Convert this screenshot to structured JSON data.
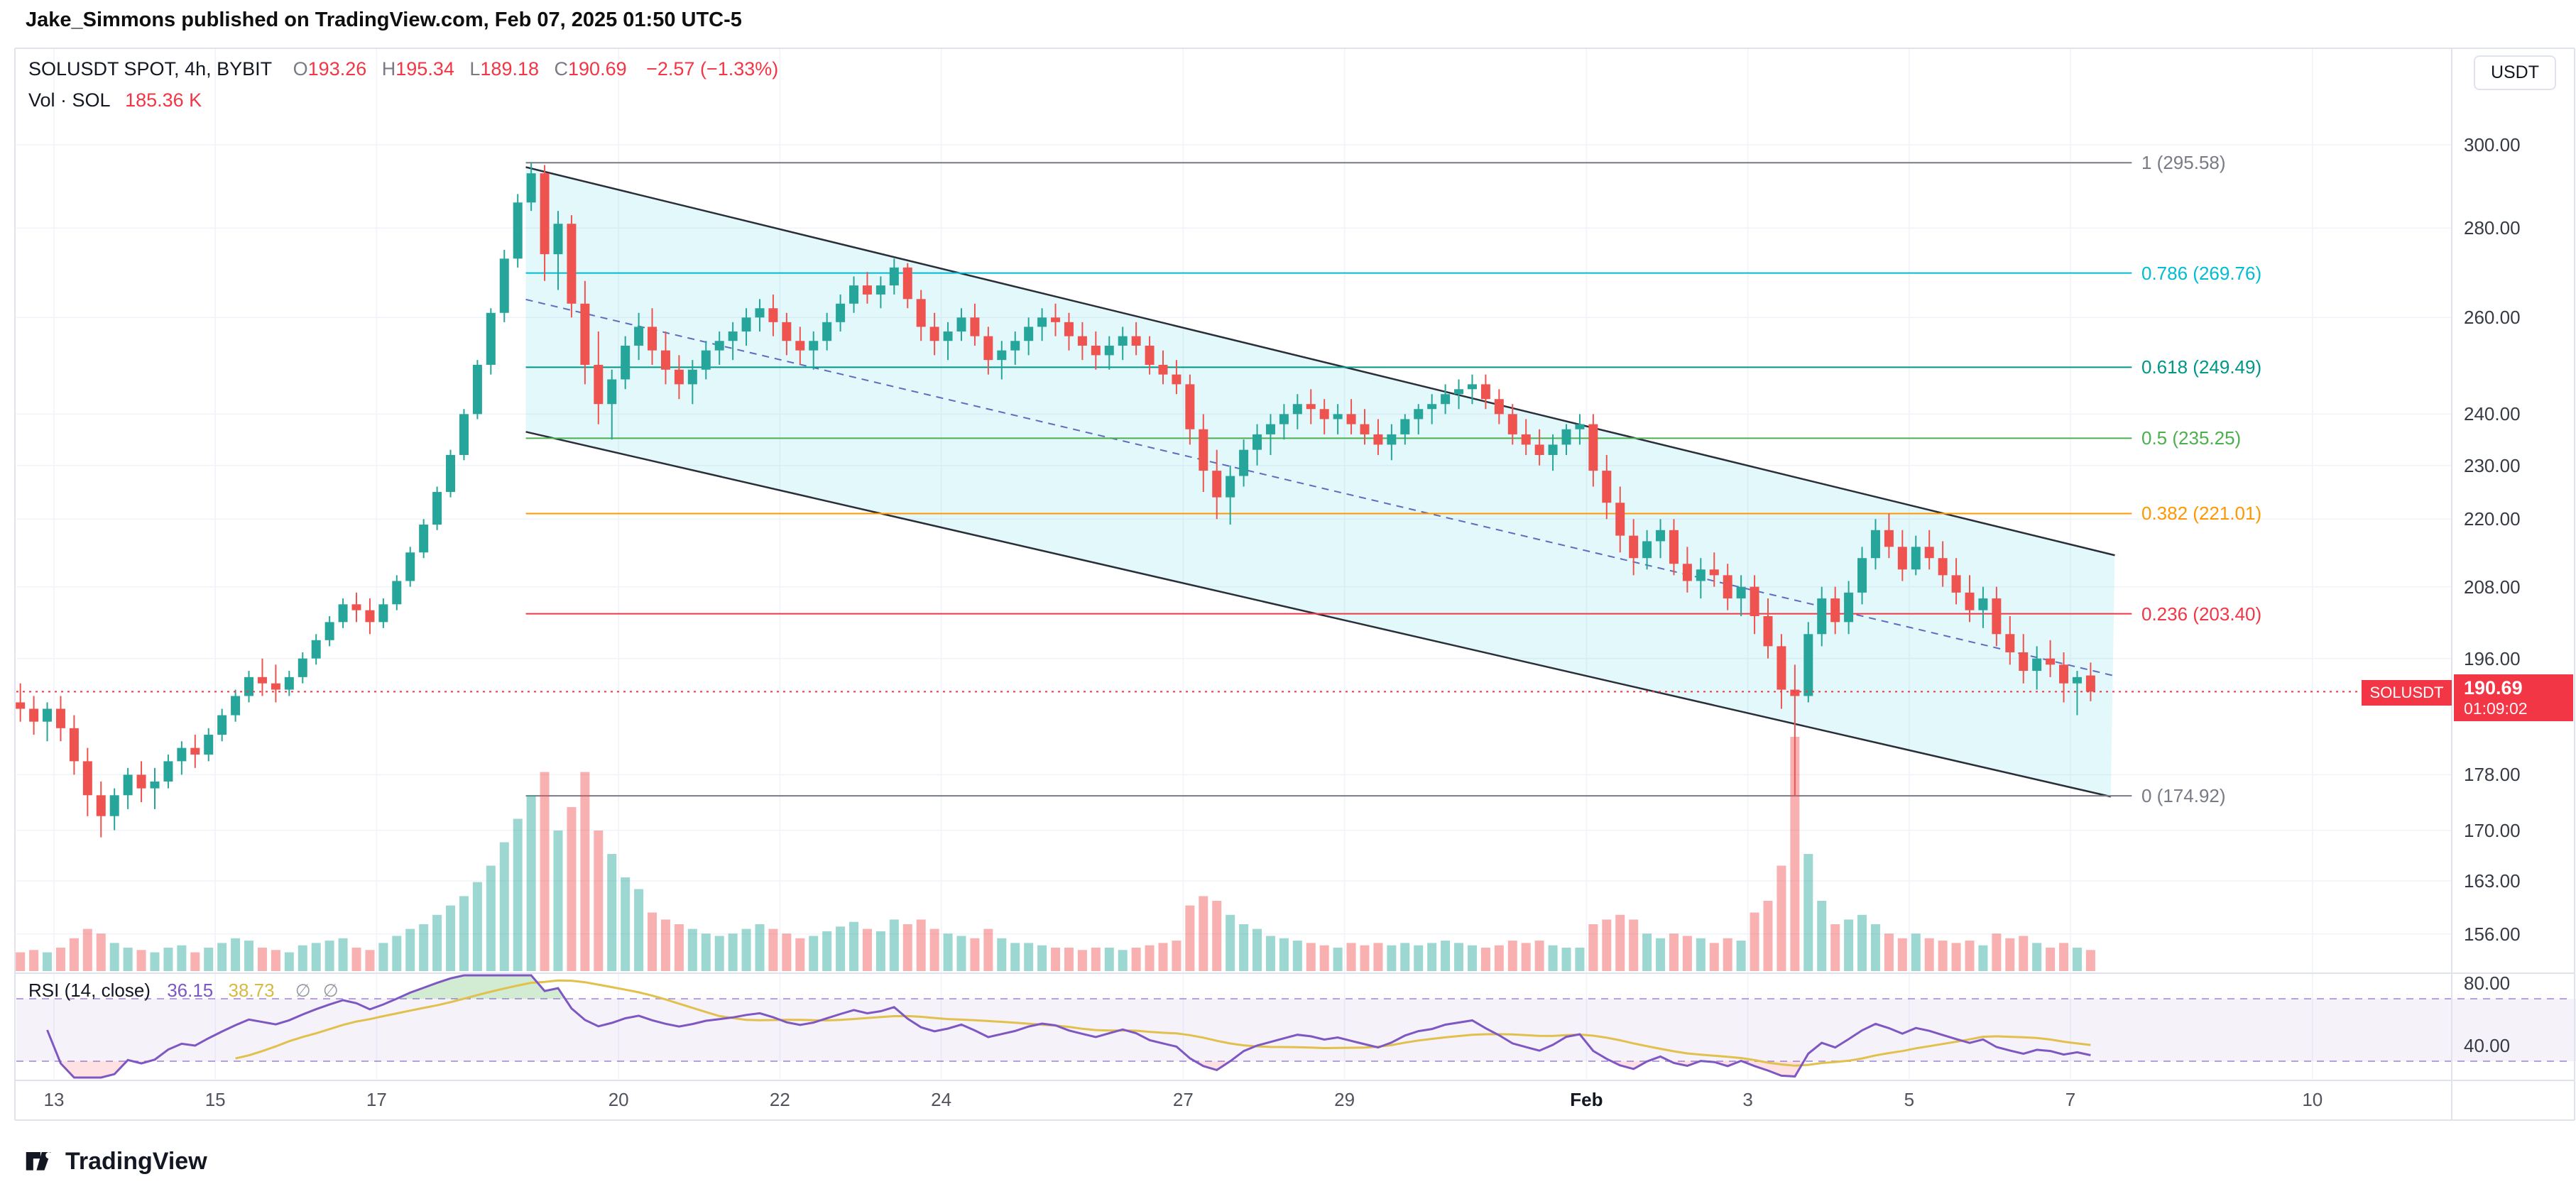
{
  "header": {
    "published": "Jake_Simmons published on TradingView.com, Feb 07, 2025 01:50 UTC-5"
  },
  "legend": {
    "symbol": "SOLUSDT SPOT, 4h, BYBIT",
    "o_label": "O",
    "o_value": "193.26",
    "h_label": "H",
    "h_value": "195.34",
    "l_label": "L",
    "l_value": "189.18",
    "c_label": "C",
    "c_value": "190.69",
    "change": "−2.57 (−1.33%)",
    "vol_label": "Vol · SOL",
    "vol_value": "185.36 K"
  },
  "rsi_legend": {
    "label": "RSI (14, close)",
    "value": "36.15",
    "ma_value": "38.73",
    "slot1": "∅",
    "slot2": "∅"
  },
  "price_axis": {
    "currency": "USDT",
    "ticks": [
      {
        "label": "300.00",
        "value": 300
      },
      {
        "label": "280.00",
        "value": 280
      },
      {
        "label": "260.00",
        "value": 260
      },
      {
        "label": "240.00",
        "value": 240
      },
      {
        "label": "230.00",
        "value": 230
      },
      {
        "label": "220.00",
        "value": 220
      },
      {
        "label": "208.00",
        "value": 208
      },
      {
        "label": "196.00",
        "value": 196
      },
      {
        "label": "178.00",
        "value": 178
      },
      {
        "label": "170.00",
        "value": 170
      },
      {
        "label": "163.00",
        "value": 163
      },
      {
        "label": "156.00",
        "value": 156
      }
    ]
  },
  "time_axis": {
    "ticks": [
      {
        "label": "13",
        "day": 13,
        "major": false
      },
      {
        "label": "15",
        "day": 15,
        "major": false
      },
      {
        "label": "17",
        "day": 17,
        "major": false
      },
      {
        "label": "20",
        "day": 20,
        "major": false
      },
      {
        "label": "22",
        "day": 22,
        "major": false
      },
      {
        "label": "24",
        "day": 24,
        "major": false
      },
      {
        "label": "27",
        "day": 27,
        "major": false
      },
      {
        "label": "29",
        "day": 29,
        "major": false
      },
      {
        "label": "Feb",
        "day": 32,
        "major": true
      },
      {
        "label": "3",
        "day": 34,
        "major": false
      },
      {
        "label": "5",
        "day": 36,
        "major": false
      },
      {
        "label": "7",
        "day": 38,
        "major": false
      },
      {
        "label": "10",
        "day": 41,
        "major": false
      }
    ]
  },
  "price_line": {
    "symbol": "SOLUSDT",
    "price": "190.69",
    "countdown": "01:09:02",
    "value": 190.69
  },
  "footer": {
    "brand": "TradingView"
  },
  "chart_data": {
    "type": "candlestick",
    "title": "SOLUSDT SPOT 4h BYBIT",
    "symbol": "SOLUSDT",
    "exchange": "BYBIT",
    "interval": "4h",
    "price_scale": "log",
    "ohlc_current": {
      "open": 193.26,
      "high": 195.34,
      "low": 189.18,
      "close": 190.69,
      "change": -2.57,
      "change_pct": -1.33
    },
    "volume_current": "185.36 K",
    "last_price": 190.69,
    "x_start_day": 12.5,
    "candles_per_day": 6,
    "candles": [
      [
        189,
        192,
        186,
        188,
        8
      ],
      [
        188,
        190,
        184,
        186,
        9
      ],
      [
        186,
        189,
        183,
        188,
        8
      ],
      [
        188,
        190,
        183,
        185,
        10
      ],
      [
        185,
        187,
        178,
        180,
        14
      ],
      [
        180,
        182,
        172,
        175,
        18
      ],
      [
        175,
        177,
        169,
        172,
        16
      ],
      [
        172,
        176,
        170,
        175,
        12
      ],
      [
        175,
        179,
        173,
        178,
        10
      ],
      [
        178,
        180,
        174,
        176,
        9
      ],
      [
        176,
        179,
        173,
        177,
        8
      ],
      [
        177,
        181,
        176,
        180,
        10
      ],
      [
        180,
        183,
        178,
        182,
        11
      ],
      [
        182,
        184,
        179,
        181,
        8
      ],
      [
        181,
        185,
        180,
        184,
        10
      ],
      [
        184,
        188,
        183,
        187,
        12
      ],
      [
        187,
        191,
        186,
        190,
        14
      ],
      [
        190,
        194,
        189,
        193,
        13
      ],
      [
        193,
        196,
        190,
        192,
        10
      ],
      [
        192,
        195,
        189,
        191,
        9
      ],
      [
        191,
        194,
        190,
        193,
        8
      ],
      [
        193,
        197,
        192,
        196,
        11
      ],
      [
        196,
        200,
        195,
        199,
        12
      ],
      [
        199,
        203,
        198,
        202,
        13
      ],
      [
        202,
        206,
        201,
        205,
        14
      ],
      [
        205,
        207,
        202,
        204,
        10
      ],
      [
        204,
        206,
        200,
        202,
        9
      ],
      [
        202,
        206,
        201,
        205,
        12
      ],
      [
        205,
        210,
        204,
        209,
        15
      ],
      [
        209,
        215,
        208,
        214,
        18
      ],
      [
        214,
        220,
        213,
        219,
        20
      ],
      [
        219,
        226,
        218,
        225,
        24
      ],
      [
        225,
        233,
        224,
        232,
        28
      ],
      [
        232,
        241,
        231,
        240,
        32
      ],
      [
        240,
        251,
        239,
        250,
        38
      ],
      [
        250,
        262,
        248,
        261,
        45
      ],
      [
        261,
        275,
        259,
        273,
        55
      ],
      [
        273,
        288,
        271,
        286,
        65
      ],
      [
        286,
        295.58,
        284,
        293,
        75
      ],
      [
        293,
        295,
        268,
        274,
        85
      ],
      [
        274,
        284,
        266,
        281,
        60
      ],
      [
        281,
        283,
        260,
        263,
        70
      ],
      [
        263,
        268,
        246,
        250,
        85
      ],
      [
        250,
        257,
        238,
        242,
        60
      ],
      [
        242,
        249,
        235,
        247,
        50
      ],
      [
        247,
        256,
        245,
        254,
        40
      ],
      [
        254,
        261,
        251,
        258,
        35
      ],
      [
        258,
        262,
        250,
        253,
        25
      ],
      [
        253,
        257,
        246,
        249,
        22
      ],
      [
        249,
        252,
        243,
        246,
        20
      ],
      [
        246,
        251,
        242,
        249,
        18
      ],
      [
        249,
        255,
        247,
        253,
        16
      ],
      [
        253,
        257,
        250,
        255,
        15
      ],
      [
        255,
        259,
        251,
        257,
        16
      ],
      [
        257,
        262,
        254,
        260,
        18
      ],
      [
        260,
        264,
        257,
        262,
        20
      ],
      [
        262,
        265,
        256,
        259,
        18
      ],
      [
        259,
        261,
        252,
        255,
        16
      ],
      [
        255,
        258,
        250,
        253,
        14
      ],
      [
        253,
        257,
        249,
        255,
        15
      ],
      [
        255,
        261,
        253,
        259,
        17
      ],
      [
        259,
        265,
        257,
        263,
        19
      ],
      [
        263,
        269,
        261,
        267,
        21
      ],
      [
        267,
        270,
        263,
        265,
        18
      ],
      [
        265,
        269,
        262,
        267,
        17
      ],
      [
        267,
        273,
        265,
        271,
        22
      ],
      [
        271,
        272,
        262,
        264,
        20
      ],
      [
        264,
        266,
        255,
        258,
        22
      ],
      [
        258,
        261,
        252,
        255,
        18
      ],
      [
        255,
        259,
        251,
        257,
        16
      ],
      [
        257,
        262,
        255,
        260,
        15
      ],
      [
        260,
        263,
        254,
        256,
        14
      ],
      [
        256,
        258,
        248,
        251,
        18
      ],
      [
        251,
        255,
        247,
        253,
        14
      ],
      [
        253,
        257,
        250,
        255,
        12
      ],
      [
        255,
        260,
        252,
        258,
        12
      ],
      [
        258,
        262,
        255,
        260,
        11
      ],
      [
        260,
        263,
        256,
        259,
        10
      ],
      [
        259,
        261,
        253,
        256,
        10
      ],
      [
        256,
        259,
        251,
        254,
        9
      ],
      [
        254,
        257,
        249,
        252,
        10
      ],
      [
        252,
        256,
        249,
        254,
        10
      ],
      [
        254,
        258,
        251,
        256,
        9
      ],
      [
        256,
        259,
        252,
        254,
        10
      ],
      [
        254,
        256,
        248,
        250,
        11
      ],
      [
        250,
        253,
        246,
        248,
        12
      ],
      [
        248,
        251,
        244,
        246,
        13
      ],
      [
        246,
        248,
        234,
        237,
        28
      ],
      [
        237,
        240,
        225,
        229,
        32
      ],
      [
        229,
        233,
        220,
        224,
        30
      ],
      [
        224,
        230,
        219,
        228,
        24
      ],
      [
        228,
        235,
        226,
        233,
        20
      ],
      [
        233,
        238,
        230,
        236,
        18
      ],
      [
        236,
        240,
        232,
        238,
        15
      ],
      [
        238,
        242,
        235,
        240,
        14
      ],
      [
        240,
        244,
        237,
        242,
        13
      ],
      [
        242,
        245,
        238,
        241,
        12
      ],
      [
        241,
        243,
        236,
        239,
        11
      ],
      [
        239,
        242,
        236,
        240,
        10
      ],
      [
        240,
        243,
        236,
        238,
        12
      ],
      [
        238,
        241,
        234,
        236,
        11
      ],
      [
        236,
        239,
        232,
        234,
        12
      ],
      [
        234,
        238,
        231,
        236,
        11
      ],
      [
        236,
        240,
        234,
        239,
        12
      ],
      [
        239,
        242,
        236,
        241,
        11
      ],
      [
        241,
        244,
        238,
        242,
        12
      ],
      [
        242,
        246,
        240,
        244,
        13
      ],
      [
        244,
        247,
        241,
        245,
        12
      ],
      [
        245,
        248,
        242,
        246,
        11
      ],
      [
        246,
        248,
        241,
        243,
        10
      ],
      [
        243,
        245,
        238,
        240,
        11
      ],
      [
        240,
        242,
        234,
        236,
        13
      ],
      [
        236,
        239,
        232,
        234,
        12
      ],
      [
        234,
        237,
        230,
        232,
        13
      ],
      [
        232,
        236,
        229,
        234,
        11
      ],
      [
        234,
        238,
        232,
        237,
        10
      ],
      [
        237,
        240,
        234,
        238,
        10
      ],
      [
        238,
        240,
        226,
        229,
        20
      ],
      [
        229,
        232,
        220,
        223,
        22
      ],
      [
        223,
        226,
        214,
        217,
        24
      ],
      [
        217,
        220,
        210,
        213,
        22
      ],
      [
        213,
        218,
        211,
        216,
        16
      ],
      [
        216,
        220,
        213,
        218,
        14
      ],
      [
        218,
        220,
        210,
        212,
        16
      ],
      [
        212,
        215,
        207,
        209,
        15
      ],
      [
        209,
        213,
        206,
        211,
        14
      ],
      [
        211,
        214,
        208,
        210,
        12
      ],
      [
        210,
        212,
        204,
        206,
        14
      ],
      [
        206,
        210,
        203,
        208,
        13
      ],
      [
        208,
        210,
        200,
        203,
        25
      ],
      [
        203,
        206,
        196,
        198,
        30
      ],
      [
        198,
        200,
        188,
        191,
        45
      ],
      [
        191,
        195,
        174.92,
        190,
        100
      ],
      [
        190,
        202,
        189,
        200,
        50
      ],
      [
        200,
        208,
        198,
        206,
        30
      ],
      [
        206,
        208,
        200,
        202,
        20
      ],
      [
        202,
        209,
        200,
        207,
        22
      ],
      [
        207,
        215,
        205,
        213,
        24
      ],
      [
        213,
        220,
        211,
        218,
        20
      ],
      [
        218,
        221,
        213,
        215,
        16
      ],
      [
        215,
        218,
        209,
        211,
        14
      ],
      [
        211,
        217,
        210,
        215,
        16
      ],
      [
        215,
        218,
        211,
        213,
        14
      ],
      [
        213,
        216,
        208,
        210,
        13
      ],
      [
        210,
        213,
        205,
        207,
        12
      ],
      [
        207,
        210,
        202,
        204,
        13
      ],
      [
        204,
        208,
        201,
        206,
        11
      ],
      [
        206,
        208,
        198,
        200,
        16
      ],
      [
        200,
        203,
        195,
        197,
        14
      ],
      [
        197,
        200,
        192,
        194,
        15
      ],
      [
        194,
        198,
        191,
        196,
        12
      ],
      [
        196,
        199,
        193,
        195,
        10
      ],
      [
        195,
        197,
        189,
        192,
        12
      ],
      [
        192,
        194,
        187,
        193,
        10
      ],
      [
        193.26,
        195.34,
        189.18,
        190.69,
        9
      ]
    ],
    "channel": {
      "upper": [
        [
          18.85,
          294.5
        ],
        [
          38.55,
          213.5
        ]
      ],
      "lower": [
        [
          18.85,
          236.5
        ],
        [
          38.5,
          174.8
        ]
      ]
    },
    "fib_extent_days": [
      18.85,
      38.76
    ],
    "fib_levels": [
      {
        "label": "1 (295.58)",
        "value": 295.58,
        "color": "#787b86"
      },
      {
        "label": "0.786 (269.76)",
        "value": 269.76,
        "color": "#00bcd4"
      },
      {
        "label": "0.618 (249.49)",
        "value": 249.49,
        "color": "#009688"
      },
      {
        "label": "0.5 (235.25)",
        "value": 235.25,
        "color": "#4caf50"
      },
      {
        "label": "0.382 (221.01)",
        "value": 221.01,
        "color": "#ff9800"
      },
      {
        "label": "0.236 (203.40)",
        "value": 203.4,
        "color": "#f23645"
      },
      {
        "label": "0 (174.92)",
        "value": 174.92,
        "color": "#787b86"
      }
    ],
    "rsi": {
      "period": 14,
      "current": 36.15,
      "ma_current": 38.73,
      "overbought": 70,
      "oversold": 30,
      "axis_labels": [
        {
          "label": "80.00",
          "value": 80
        },
        {
          "label": "40.00",
          "value": 40
        }
      ]
    },
    "colors": {
      "up": "#26a69a",
      "down": "#ef5350",
      "vol_up": "rgba(38,166,154,0.45)",
      "vol_down": "rgba(239,83,80,0.45)",
      "channel_line": "#2a2e39",
      "channel_mid": "#5d6cc0",
      "channel_fill": "rgba(0,188,212,0.11)",
      "price_line": "#f23645",
      "rsi": "#7e57c2",
      "rsi_ma": "#e2c04c",
      "rsi_band": "rgba(126,87,194,0.08)",
      "rsi_ob_fill": "rgba(76,175,80,0.25)",
      "rsi_os_fill": "rgba(242,54,69,0.15)",
      "grid": "#f0f3fa",
      "border": "#e0e3eb",
      "axis_text": "#363a45",
      "badge": "#f23645"
    }
  }
}
